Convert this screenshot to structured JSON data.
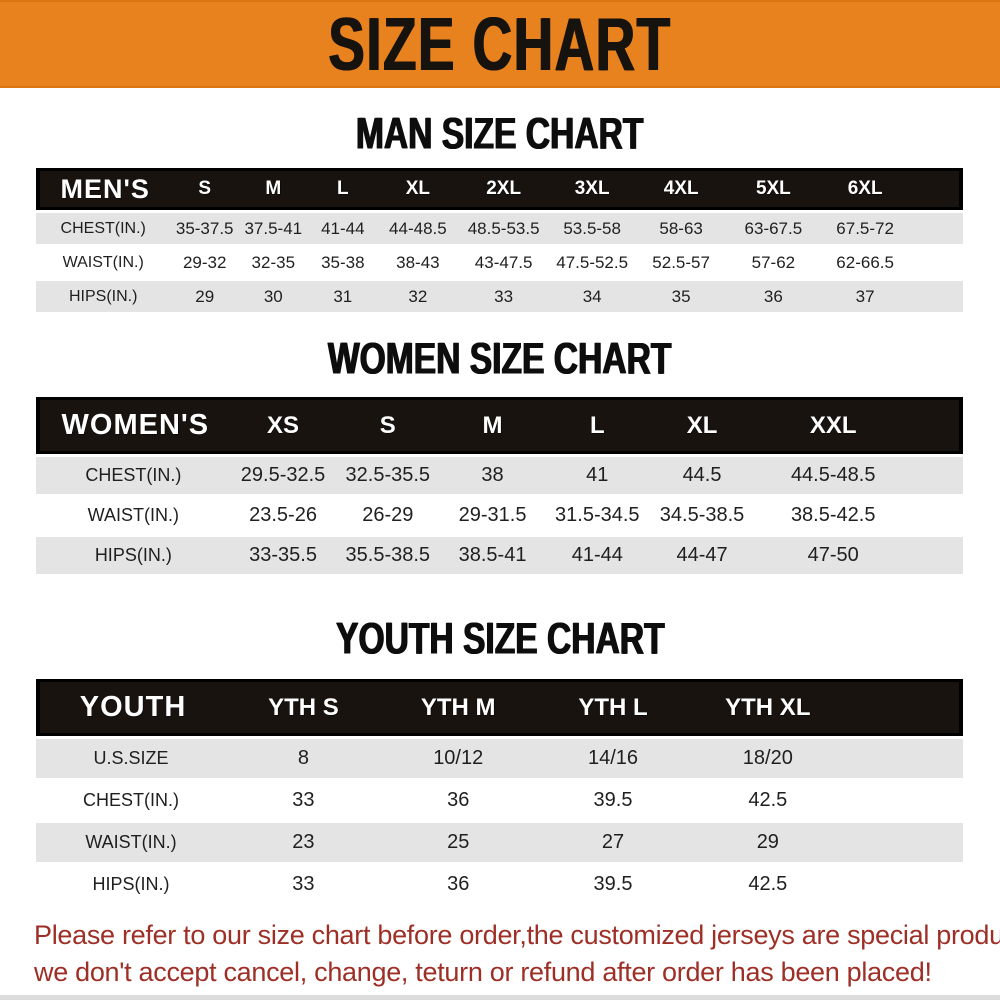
{
  "banner": {
    "title": "SIZE CHART",
    "bg_color": "#E8821E"
  },
  "colors": {
    "banner_orange": "#E8821E",
    "table_header_black": "#18130E",
    "row_gray": "#E4E4E4",
    "notice_red": "#9E2F26"
  },
  "sections": [
    {
      "heading": "MAN SIZE CHART",
      "header_label": "MEN'S",
      "columns": [
        "S",
        "M",
        "L",
        "XL",
        "2XL",
        "3XL",
        "4XL",
        "5XL",
        "6XL"
      ],
      "rows": [
        {
          "label": "CHEST(IN.)",
          "values": [
            "35-37.5",
            "37.5-41",
            "41-44",
            "44-48.5",
            "48.5-53.5",
            "53.5-58",
            "58-63",
            "63-67.5",
            "67.5-72"
          ]
        },
        {
          "label": "WAIST(IN.)",
          "values": [
            "29-32",
            "32-35",
            "35-38",
            "38-43",
            "43-47.5",
            "47.5-52.5",
            "52.5-57",
            "57-62",
            "62-66.5"
          ]
        },
        {
          "label": "HIPS(IN.)",
          "values": [
            "29",
            "30",
            "31",
            "32",
            "33",
            "34",
            "35",
            "36",
            "37"
          ]
        }
      ]
    },
    {
      "heading": "WOMEN SIZE CHART",
      "header_label": "WOMEN'S",
      "columns": [
        "XS",
        "S",
        "M",
        "L",
        "XL",
        "XXL"
      ],
      "rows": [
        {
          "label": "CHEST(IN.)",
          "values": [
            "29.5-32.5",
            "32.5-35.5",
            "38",
            "41",
            "44.5",
            "44.5-48.5"
          ]
        },
        {
          "label": "WAIST(IN.)",
          "values": [
            "23.5-26",
            "26-29",
            "29-31.5",
            "31.5-34.5",
            "34.5-38.5",
            "38.5-42.5"
          ]
        },
        {
          "label": "HIPS(IN.)",
          "values": [
            "33-35.5",
            "35.5-38.5",
            "38.5-41",
            "41-44",
            "44-47",
            "47-50"
          ]
        }
      ]
    },
    {
      "heading": "YOUTH SIZE CHART",
      "header_label": "YOUTH",
      "columns": [
        "YTH S",
        "YTH M",
        "YTH L",
        "YTH XL"
      ],
      "rows": [
        {
          "label": "U.S.SIZE",
          "values": [
            "8",
            "10/12",
            "14/16",
            "18/20"
          ]
        },
        {
          "label": "CHEST(IN.)",
          "values": [
            "33",
            "36",
            "39.5",
            "42.5"
          ]
        },
        {
          "label": "WAIST(IN.)",
          "values": [
            "23",
            "25",
            "27",
            "29"
          ]
        },
        {
          "label": "HIPS(IN.)",
          "values": [
            "33",
            "36",
            "39.5",
            "42.5"
          ]
        }
      ]
    }
  ],
  "footer": {
    "line1": "Please refer to our size chart before order,the customized jerseys are special products,",
    "line2": "we don't accept cancel, change, teturn or refund after order has been placed!"
  }
}
